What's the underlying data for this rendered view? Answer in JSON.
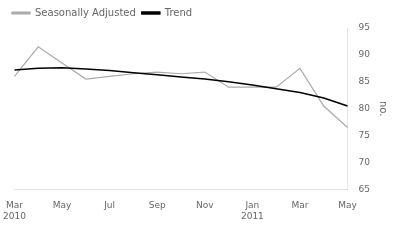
{
  "chart_data": {
    "type": "line",
    "categories": [
      "Mar\n2010",
      null,
      "May",
      null,
      "Jul",
      null,
      "Sep",
      null,
      "Nov",
      null,
      "Jan\n2011",
      null,
      "Mar",
      null,
      "May"
    ],
    "series": [
      {
        "name": "Seasonally Adjusted",
        "color": "#aaaaaa",
        "values": [
          86.0,
          91.5,
          88.5,
          85.5,
          86.0,
          86.5,
          86.8,
          86.5,
          86.8,
          84.0,
          84.0,
          84.0,
          87.5,
          80.5,
          76.5
        ]
      },
      {
        "name": "Trend",
        "color": "#000000",
        "values": [
          87.2,
          87.5,
          87.6,
          87.4,
          87.1,
          86.7,
          86.3,
          85.9,
          85.5,
          85.0,
          84.4,
          83.7,
          83.0,
          82.0,
          80.5
        ]
      }
    ],
    "y_label": "no.",
    "ylim": [
      65,
      95
    ],
    "yticks": [
      65,
      70,
      75,
      80,
      85,
      90,
      95
    ],
    "grid": false,
    "legend": "upper left"
  }
}
